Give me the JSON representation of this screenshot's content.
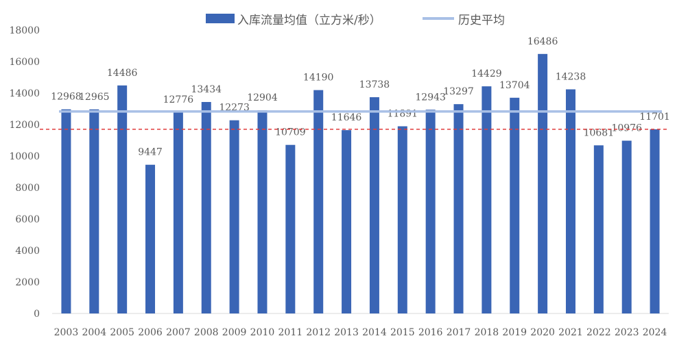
{
  "legend": {
    "bar_label": "入库流量均值（立方米/秒）",
    "line_label": "历史平均"
  },
  "colors": {
    "bar": "#3a65b5",
    "avg_line": "#a9c0e6",
    "ref_line": "#e03c3c",
    "axis": "#d9d9d9",
    "text": "#595959"
  },
  "chart_data": {
    "type": "bar",
    "categories": [
      "2003",
      "2004",
      "2005",
      "2006",
      "2007",
      "2008",
      "2009",
      "2010",
      "2011",
      "2012",
      "2013",
      "2014",
      "2015",
      "2016",
      "2017",
      "2018",
      "2019",
      "2020",
      "2021",
      "2022",
      "2023",
      "2024"
    ],
    "series": [
      {
        "name": "入库流量均值（立方米/秒）",
        "values": [
          12968,
          12965,
          14486,
          9447,
          12776,
          13434,
          12273,
          12904,
          10709,
          14190,
          11646,
          13738,
          11891,
          12943,
          13297,
          14429,
          13704,
          16486,
          14238,
          10681,
          10976,
          11701
        ]
      }
    ],
    "historical_average": 12830,
    "reference_line": 11701,
    "yticks": [
      "0",
      "2000",
      "4000",
      "6000",
      "8000",
      "10000",
      "12000",
      "14000",
      "16000",
      "18000"
    ],
    "ylim": [
      0,
      18000
    ],
    "grid": false,
    "legend_position": "top"
  }
}
